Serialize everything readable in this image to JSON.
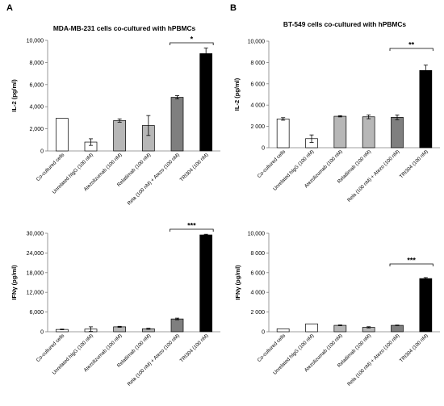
{
  "panels": [
    {
      "letter": "A",
      "title": "MDA-MB-231 cells co-cultured with hPBMCs"
    },
    {
      "letter": "B",
      "title": "BT-549 cells co-cultured with hPBMCs"
    }
  ],
  "chart_data": [
    {
      "type": "bar",
      "panel": "A",
      "title": "MDA-MB-231 cells co-cultured with hPBMCs",
      "ylabel": "IL-2 (pg/ml)",
      "xlabel": "",
      "ylim": [
        0,
        10000
      ],
      "yticks": [
        "0",
        "2,000",
        "4,000",
        "6,000",
        "8,000",
        "10,000"
      ],
      "categories": [
        "Co-cultured cells",
        "Unrelated hIgG (100 nM)",
        "Atezolizumab (100 nM)",
        "Relatlimab (100 nM)",
        "Rela (100 nM) + Atezo (100 nM)",
        "TRI304 (100 nM)"
      ],
      "values": [
        2950,
        800,
        2750,
        2300,
        4850,
        8800
      ],
      "errors": [
        0,
        300,
        150,
        900,
        150,
        500
      ],
      "bar_colors": [
        "#ffffff",
        "#ffffff",
        "#b7b7b7",
        "#b7b7b7",
        "#7f7f7f",
        "#000000"
      ],
      "significance": {
        "label": "*",
        "from": 4,
        "to": 5
      }
    },
    {
      "type": "bar",
      "panel": "B",
      "title": "BT-549 cells co-cultured with hPBMCs",
      "ylabel": "IL-2 (pg/ml)",
      "xlabel": "",
      "ylim": [
        0,
        10000
      ],
      "yticks": [
        "0",
        "2 000",
        "4 000",
        "6 000",
        "8 000",
        "10,000"
      ],
      "categories": [
        "Co-cultured cells",
        "Unrelated hIgG (100 nM)",
        "Atezolizumab (100 nM)",
        "Relatlimab (100 nM)",
        "Rela (100 nM) + Atezo (100 nM)",
        "TRI304 (100 nM)"
      ],
      "values": [
        2700,
        850,
        2950,
        2900,
        2850,
        7250
      ],
      "errors": [
        120,
        350,
        60,
        180,
        220,
        500
      ],
      "bar_colors": [
        "#ffffff",
        "#ffffff",
        "#b7b7b7",
        "#b7b7b7",
        "#7f7f7f",
        "#000000"
      ],
      "significance": {
        "label": "**",
        "from": 4,
        "to": 5
      }
    },
    {
      "type": "bar",
      "panel": "A",
      "title": "",
      "ylabel": "IFNγ (pg/ml)",
      "xlabel": "",
      "ylim": [
        0,
        30000
      ],
      "yticks": [
        "0",
        "6,000",
        "12,000",
        "18,000",
        "24,000",
        "30,000"
      ],
      "categories": [
        "Co-cultured cells",
        "Unrelated hIgG (100 nM)",
        "Atezolizumab (100 nM)",
        "Relatlimab (100 nM)",
        "Rela (100 nM) + Atezo (100 nM)",
        "TRI304 (100 nM)"
      ],
      "values": [
        700,
        800,
        1500,
        900,
        3900,
        29500
      ],
      "errors": [
        100,
        700,
        150,
        150,
        250,
        200
      ],
      "bar_colors": [
        "#ffffff",
        "#ffffff",
        "#b7b7b7",
        "#b7b7b7",
        "#7f7f7f",
        "#000000"
      ],
      "significance": {
        "label": "***",
        "from": 4,
        "to": 5
      }
    },
    {
      "type": "bar",
      "panel": "B",
      "title": "",
      "ylabel": "IFNγ (pg/ml)",
      "xlabel": "",
      "ylim": [
        0,
        10000
      ],
      "yticks": [
        "0",
        "2 000",
        "4 000",
        "6 000",
        "8 000",
        "10,000"
      ],
      "categories": [
        "Co-cultured cells",
        "Unrelated hIgG (100 nM)",
        "Atezolizumab (100 nM)",
        "Relatlimab (100 nM)",
        "Rela (100 nM) + Atezo (100 nM)",
        "TRI304 (100 nM)"
      ],
      "values": [
        300,
        800,
        650,
        450,
        650,
        5400
      ],
      "errors": [
        0,
        0,
        40,
        60,
        30,
        100
      ],
      "bar_colors": [
        "#ffffff",
        "#ffffff",
        "#b7b7b7",
        "#b7b7b7",
        "#7f7f7f",
        "#000000"
      ],
      "significance": {
        "label": "***",
        "from": 4,
        "to": 5
      }
    }
  ]
}
